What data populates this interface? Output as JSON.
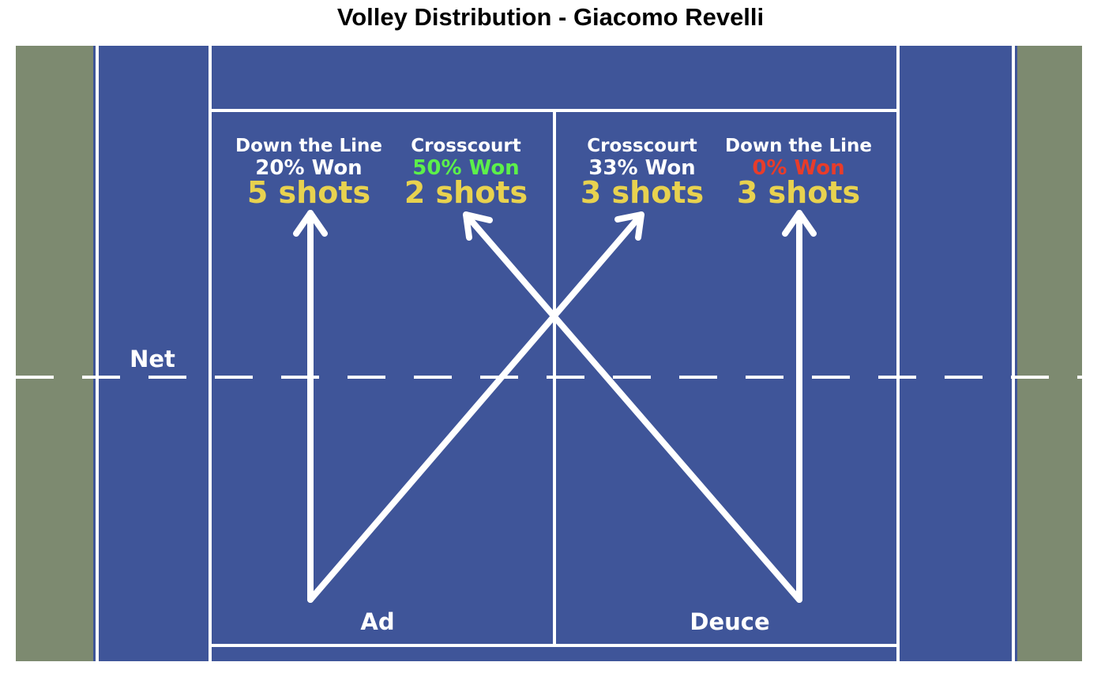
{
  "title": "Volley Distribution - Giacomo Revelli",
  "colors": {
    "court": "#3f5599",
    "outer": "#7d8a70",
    "lines": "#ffffff",
    "shots_text": "#e8d24f",
    "won_high": "#5cf04a",
    "won_zero": "#e83c2a",
    "text": "#ffffff"
  },
  "chart_data": {
    "type": "court-diagram",
    "title": "Volley Distribution - Giacomo Revelli",
    "labels": {
      "net": "Net",
      "ad": "Ad",
      "deuce": "Deuce"
    },
    "shots": [
      {
        "side": "Ad",
        "direction": "Down the Line",
        "won_label": "20% Won",
        "won_pct": 20,
        "shots_label": "5 shots",
        "count": 5,
        "won_color": "#ffffff"
      },
      {
        "side": "Deuce",
        "direction": "Crosscourt",
        "won_label": "50% Won",
        "won_pct": 50,
        "shots_label": "2 shots",
        "count": 2,
        "won_color": "#5cf04a"
      },
      {
        "side": "Ad",
        "direction": "Crosscourt",
        "won_label": "33% Won",
        "won_pct": 33,
        "shots_label": "3 shots",
        "count": 3,
        "won_color": "#ffffff"
      },
      {
        "side": "Deuce",
        "direction": "Down the Line",
        "won_label": "0% Won",
        "won_pct": 0,
        "shots_label": "3 shots",
        "count": 3,
        "won_color": "#e83c2a"
      }
    ]
  }
}
